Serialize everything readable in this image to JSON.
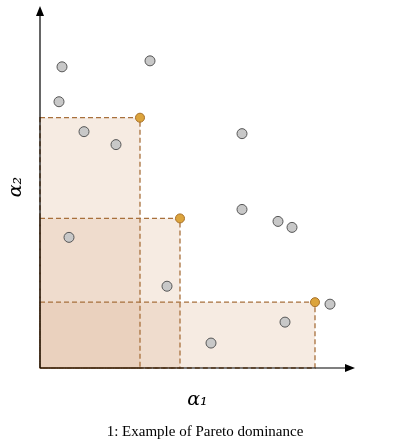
{
  "chart_data": {
    "type": "scatter",
    "x_label": "α₁",
    "y_label": "α₂",
    "caption": "1: Example of Pareto dominance",
    "xlim": [
      0,
      31.5
    ],
    "ylim": [
      0,
      36.3
    ],
    "tick_labels": false,
    "grid": false,
    "series": [
      {
        "color": "#c8c8c8",
        "marker": "circle",
        "x": [
          2.2,
          1.9,
          11,
          4.4,
          7.6,
          20.2,
          2.9,
          20.2,
          23.8,
          25.2,
          12.7,
          29,
          24.5,
          17.1
        ],
        "values": [
          30.2,
          26.7,
          30.8,
          23.7,
          22.4,
          23.5,
          13.1,
          15.9,
          14.7,
          14.1,
          8.2,
          6.4,
          4.6,
          2.5
        ]
      },
      {
        "color": "#dca43c",
        "marker": "circle",
        "line_style": "dashed",
        "x": [
          10,
          14,
          27.5
        ],
        "values": [
          25.1,
          15,
          6.6
        ]
      }
    ]
  }
}
